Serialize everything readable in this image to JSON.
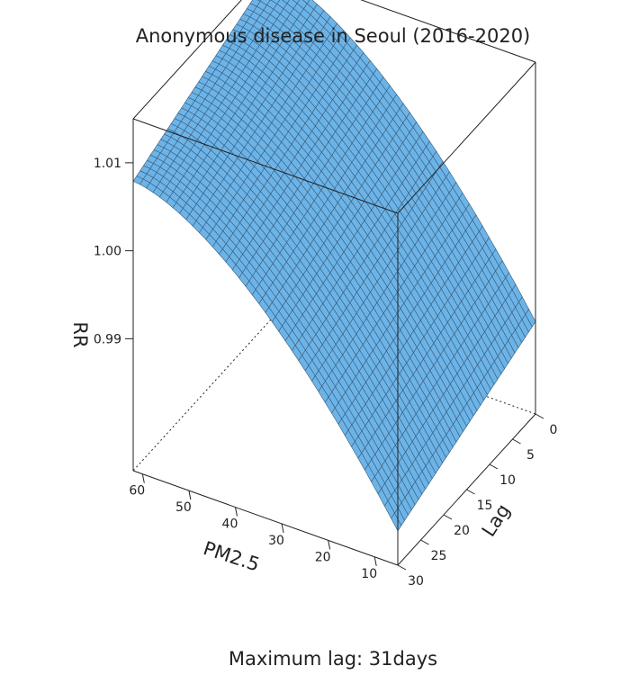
{
  "chart_data": {
    "type": "surface3d",
    "title": "Anonymous disease in Seoul (2016-2020)",
    "subtitle": "Maximum lag: 31days",
    "x_axis": {
      "label": "PM2.5",
      "ticks": [
        10,
        20,
        30,
        40,
        50,
        60
      ],
      "range": [
        5,
        62
      ]
    },
    "y_axis": {
      "label": "Lag",
      "ticks": [
        0,
        5,
        10,
        15,
        20,
        25,
        30
      ],
      "range": [
        0,
        30
      ]
    },
    "z_axis": {
      "label": "RR",
      "ticks": [
        "0.99",
        "1.00",
        "1.01"
      ],
      "range": [
        0.975,
        1.015
      ]
    },
    "surface": {
      "color": "#6cb4e8",
      "grid_color": "#3a5a78",
      "description_points": [
        {
          "pm25": 62,
          "lag": 0,
          "rr": 1.014
        },
        {
          "pm25": 62,
          "lag": 30,
          "rr": 1.01
        },
        {
          "pm25": 5,
          "lag": 0,
          "rr": 0.985
        },
        {
          "pm25": 5,
          "lag": 30,
          "rr": 0.978
        }
      ]
    }
  }
}
